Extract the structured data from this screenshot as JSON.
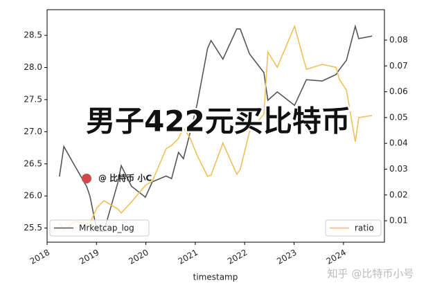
{
  "chart_data": {
    "type": "line",
    "x": [
      2018.25,
      2018.34,
      2018.56,
      2018.8,
      2018.87,
      2019.01,
      2019.15,
      2019.43,
      2019.5,
      2019.71,
      2019.99,
      2020.13,
      2020.41,
      2020.52,
      2020.66,
      2020.76,
      2020.9,
      2021.04,
      2021.25,
      2021.32,
      2021.56,
      2021.84,
      2021.91,
      2022.1,
      2022.39,
      2022.47,
      2022.66,
      2023.01,
      2023.25,
      2023.57,
      2023.85,
      2023.92,
      2024.06,
      2024.24,
      2024.31,
      2024.58
    ],
    "series": [
      {
        "name": "Mrketcap_log",
        "color": "#555555",
        "axis": "y",
        "values": [
          26.3,
          26.77,
          26.47,
          26.15,
          25.99,
          25.45,
          25.45,
          26.2,
          26.47,
          26.15,
          25.98,
          26.22,
          26.31,
          26.27,
          26.68,
          26.58,
          27.0,
          27.44,
          28.3,
          28.42,
          28.13,
          28.6,
          28.6,
          28.21,
          27.92,
          27.49,
          27.62,
          27.41,
          27.81,
          27.79,
          27.89,
          27.97,
          28.11,
          28.64,
          28.45,
          28.49
        ]
      },
      {
        "name": "ratio",
        "color": "#f0c05a",
        "axis": "y2",
        "values": [
          0.009,
          0.0063,
          0.0098,
          0.009,
          0.0092,
          0.0151,
          0.0178,
          0.0146,
          0.013,
          0.0173,
          0.0237,
          0.0253,
          0.0379,
          0.0392,
          0.0419,
          0.046,
          0.0419,
          0.0352,
          0.0272,
          0.0277,
          0.0401,
          0.028,
          0.0299,
          0.0446,
          0.0513,
          0.0754,
          0.0695,
          0.0854,
          0.0687,
          0.0706,
          0.0695,
          0.0647,
          0.0607,
          0.0406,
          0.05,
          0.0508
        ]
      }
    ],
    "xlabel": "timestamp",
    "xlim": [
      2018.0,
      2024.83
    ],
    "xticks": [
      2018,
      2019,
      2020,
      2021,
      2022,
      2023,
      2024
    ],
    "ylim": [
      25.28,
      28.9
    ],
    "yticks": [
      25.5,
      {
        "value": 26,
        "label": "26.0"
      },
      26.5,
      {
        "value": 27,
        "label": "27.0"
      },
      27.5,
      {
        "value": 28,
        "label": "28.0"
      },
      28.5
    ],
    "y2lim": [
      0.0017,
      0.0918
    ],
    "y2ticks": [
      0.01,
      0.02,
      0.03,
      0.04,
      0.05,
      0.06,
      0.07,
      0.08
    ],
    "legend": [
      "lower left",
      "lower right"
    ],
    "annotations": [
      "男子422元买比特币",
      "@ 比特币 小C",
      "知乎 @比特币小号"
    ]
  }
}
